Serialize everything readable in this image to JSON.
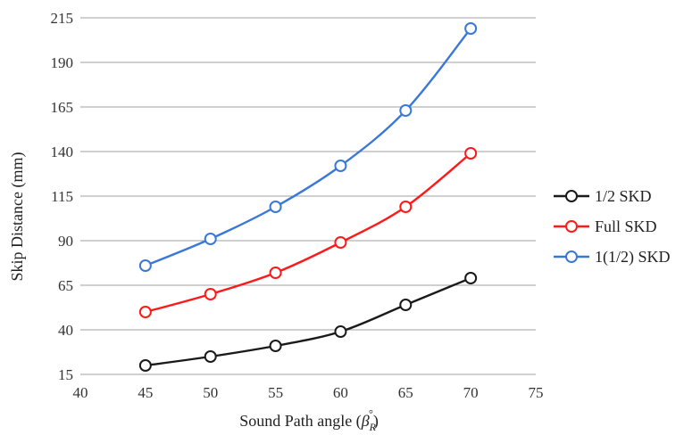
{
  "chart_data": {
    "type": "line",
    "xlabel": "Sound Path angle (",
    "xlabel_symbol": "β",
    "xlabel_sub": "R",
    "xlabel_sup": "°",
    "xlabel_end": ")",
    "ylabel": "Skip Distance (mm)",
    "xlim": [
      40,
      75
    ],
    "ylim": [
      15,
      215
    ],
    "xticks": [
      40,
      45,
      50,
      55,
      60,
      65,
      70,
      75
    ],
    "yticks": [
      15,
      40,
      65,
      90,
      115,
      140,
      165,
      190,
      215
    ],
    "x": [
      45,
      50,
      55,
      60,
      65,
      70
    ],
    "grid": "horizontal",
    "legend_position": "right",
    "series": [
      {
        "name": "1/2 SKD",
        "color": "#1a1a1a",
        "values": [
          20,
          25,
          31,
          39,
          54,
          69
        ]
      },
      {
        "name": "Full SKD",
        "color": "#ff1a1a",
        "values": [
          50,
          60,
          72,
          89,
          109,
          139
        ]
      },
      {
        "name": "1(1/2) SKD",
        "color": "#3a78d8",
        "values": [
          76,
          91,
          109,
          132,
          163,
          209
        ]
      }
    ]
  }
}
